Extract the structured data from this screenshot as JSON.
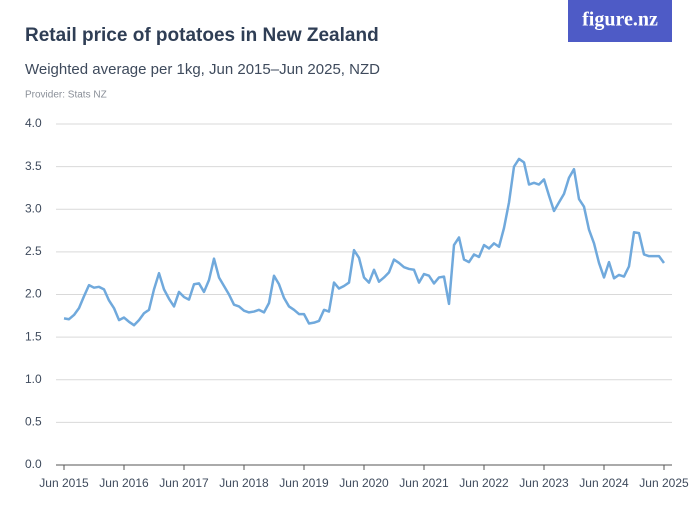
{
  "logo": "figure.nz",
  "chart_data": {
    "type": "line",
    "title": "Retail price of potatoes in New Zealand",
    "subtitle": "Weighted average per 1kg, Jun 2015–Jun 2025, NZD",
    "provider": "Provider: Stats NZ",
    "categories": [
      "Jun 2015",
      null,
      null,
      null,
      null,
      null,
      null,
      null,
      null,
      null,
      null,
      null,
      "Jun 2016",
      null,
      null,
      null,
      null,
      null,
      null,
      null,
      null,
      null,
      null,
      null,
      "Jun 2017",
      null,
      null,
      null,
      null,
      null,
      null,
      null,
      null,
      null,
      null,
      null,
      "Jun 2018",
      null,
      null,
      null,
      null,
      null,
      null,
      null,
      null,
      null,
      null,
      null,
      "Jun 2019",
      null,
      null,
      null,
      null,
      null,
      null,
      null,
      null,
      null,
      null,
      null,
      "Jun 2020",
      null,
      null,
      null,
      null,
      null,
      null,
      null,
      null,
      null,
      null,
      null,
      "Jun 2021",
      null,
      null,
      null,
      null,
      null,
      null,
      null,
      null,
      null,
      null,
      null,
      "Jun 2022",
      null,
      null,
      null,
      null,
      null,
      null,
      null,
      null,
      null,
      null,
      null,
      "Jun 2023",
      null,
      null,
      null,
      null,
      null,
      null,
      null,
      null,
      null,
      null,
      null,
      "Jun 2024",
      null,
      null,
      null,
      null,
      null,
      null,
      null,
      null,
      null,
      null,
      null,
      "Jun 2025"
    ],
    "series": [
      {
        "name": "Potatoes",
        "color": "#70a9dc",
        "values": [
          1.72,
          1.71,
          1.76,
          1.84,
          1.98,
          2.11,
          2.08,
          2.09,
          2.06,
          1.93,
          1.84,
          1.7,
          1.73,
          1.68,
          1.64,
          1.7,
          1.78,
          1.82,
          2.06,
          2.25,
          2.06,
          1.95,
          1.86,
          2.03,
          1.97,
          1.94,
          2.12,
          2.13,
          2.03,
          2.17,
          2.42,
          2.2,
          2.1,
          2.0,
          1.88,
          1.86,
          1.81,
          1.79,
          1.8,
          1.82,
          1.79,
          1.9,
          2.22,
          2.12,
          1.96,
          1.86,
          1.82,
          1.77,
          1.77,
          1.66,
          1.67,
          1.69,
          1.82,
          1.8,
          2.14,
          2.07,
          2.1,
          2.14,
          2.52,
          2.43,
          2.2,
          2.14,
          2.29,
          2.15,
          2.2,
          2.26,
          2.41,
          2.37,
          2.32,
          2.3,
          2.29,
          2.14,
          2.24,
          2.22,
          2.13,
          2.2,
          2.21,
          1.89,
          2.58,
          2.67,
          2.41,
          2.38,
          2.47,
          2.44,
          2.58,
          2.54,
          2.6,
          2.56,
          2.78,
          3.08,
          3.5,
          3.59,
          3.55,
          3.29,
          3.31,
          3.29,
          3.35,
          3.16,
          2.98,
          3.08,
          3.18,
          3.37,
          3.47,
          3.12,
          3.03,
          2.76,
          2.6,
          2.37,
          2.2,
          2.38,
          2.19,
          2.23,
          2.21,
          2.33,
          2.73,
          2.72,
          2.47,
          2.45,
          2.45,
          2.45,
          2.37
        ]
      }
    ],
    "ylim": [
      0,
      4
    ],
    "yticks": [
      {
        "value": 0,
        "label": "0.0"
      },
      0.5,
      {
        "value": 1,
        "label": "1.0"
      },
      1.5,
      {
        "value": 2,
        "label": "2.0"
      },
      2.5,
      {
        "value": 3,
        "label": "3.0"
      },
      3.5,
      {
        "value": 4,
        "label": "4.0"
      }
    ],
    "grid": true
  }
}
